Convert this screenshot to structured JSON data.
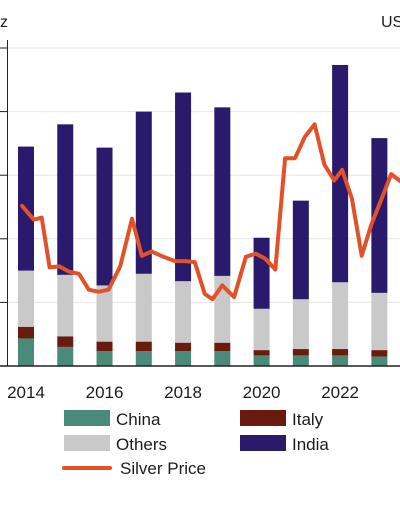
{
  "chart_data": {
    "type": "bar",
    "stacked": true,
    "title": "",
    "left_unit_label": "z",
    "right_unit_label": "US",
    "x_tick_labels": [
      "2014",
      "2016",
      "2018",
      "2020",
      "2022"
    ],
    "categories": [
      "2014",
      "2015",
      "2016",
      "2017",
      "2018",
      "2019",
      "2020",
      "2021",
      "2022",
      "2023"
    ],
    "ylim_left": [
      0,
      300
    ],
    "ylim_right": [
      0,
      300
    ],
    "grid": true,
    "legend_position": "bottom",
    "series": [
      {
        "name": "China",
        "color": "#4a8a78",
        "values": [
          26,
          18,
          14,
          14,
          14,
          14,
          10,
          10,
          10,
          9
        ]
      },
      {
        "name": "Italy",
        "color": "#6b1a0e",
        "values": [
          11,
          10,
          9,
          9,
          8,
          8,
          5,
          6,
          6,
          6
        ]
      },
      {
        "name": "Others",
        "color": "#c9c9c9",
        "values": [
          53,
          58,
          53,
          64,
          58,
          63,
          39,
          47,
          63,
          54
        ]
      },
      {
        "name": "India",
        "color": "#2a1a6b",
        "values": [
          117,
          142,
          130,
          153,
          178,
          159,
          67,
          93,
          205,
          146
        ]
      }
    ],
    "line_series": {
      "name": "Silver Price",
      "color": "#e2522a",
      "axis": "right",
      "x": [
        2013.9,
        2014.2,
        2014.4,
        2014.6,
        2014.85,
        2015.1,
        2015.35,
        2015.6,
        2015.85,
        2016.1,
        2016.4,
        2016.7,
        2016.95,
        2017.2,
        2017.5,
        2017.8,
        2018.05,
        2018.3,
        2018.55,
        2018.75,
        2019.0,
        2019.3,
        2019.6,
        2019.85,
        2020.1,
        2020.35,
        2020.6,
        2020.85,
        2021.1,
        2021.35,
        2021.6,
        2021.85,
        2022.05,
        2022.3,
        2022.55,
        2022.8,
        2023.05,
        2023.3,
        2023.55
      ],
      "values": [
        151,
        138,
        140,
        93,
        94,
        89,
        87,
        72,
        70,
        72,
        94,
        139,
        104,
        108,
        103,
        99,
        99,
        98,
        68,
        63,
        76,
        65,
        103,
        106,
        101,
        91,
        196,
        196,
        216,
        228,
        190,
        175,
        185,
        158,
        104,
        134,
        157,
        181,
        174
      ]
    }
  },
  "legend": {
    "items": [
      {
        "label": "China",
        "color": "#4a8a78",
        "kind": "box"
      },
      {
        "label": "Italy",
        "color": "#6b1a0e",
        "kind": "box"
      },
      {
        "label": "Others",
        "color": "#c9c9c9",
        "kind": "box"
      },
      {
        "label": "India",
        "color": "#2a1a6b",
        "kind": "box"
      },
      {
        "label": "Silver Price",
        "color": "#e2522a",
        "kind": "line"
      }
    ]
  }
}
